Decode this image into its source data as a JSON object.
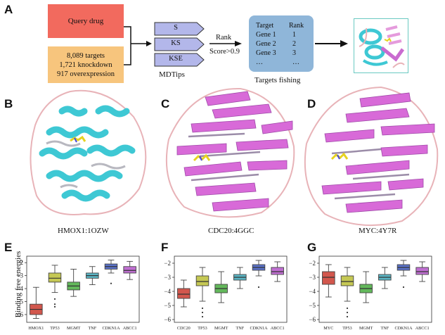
{
  "panels": {
    "a": "A",
    "b": "B",
    "c": "C",
    "d": "D",
    "e": "E",
    "f": "F",
    "g": "G"
  },
  "flow": {
    "query_drug": "Query drug",
    "targets_lines": [
      "8,089 targets",
      "1,721 knockdown",
      "917 overexpression"
    ],
    "modes": [
      "S",
      "KS",
      "KSE"
    ],
    "mdtips": "MDTips",
    "rank": "Rank",
    "score": "Score>0.9",
    "table_headers": [
      "Target",
      "Rank"
    ],
    "table_rows": [
      [
        "Gene 1",
        "1"
      ],
      [
        "Gene 2",
        "2"
      ],
      [
        "Gene 3",
        "3"
      ],
      [
        "…",
        "…"
      ]
    ],
    "targets_fishing": "Targets fishing"
  },
  "structures": [
    {
      "name": "HMOX1:1OZW",
      "helix_color": "#3ec8d4",
      "loop_color": "#e8b3b8"
    },
    {
      "name": "CDC20:4GGC",
      "sheet_color": "#d86ad8",
      "loop_color": "#e8b3b8"
    },
    {
      "name": "MYC:4Y7R",
      "sheet_color": "#d86ad8",
      "loop_color": "#e8b3b8"
    }
  ],
  "chart_data": [
    {
      "type": "box",
      "ylabel": "Binding free energies",
      "ylim": [
        -6.6,
        -1.5
      ],
      "yticks": [
        -6,
        -5,
        -4,
        -3,
        -2
      ],
      "categories": [
        "HMOX1",
        "TP53",
        "MGMT",
        "TNF",
        "CDKN1A",
        "ABCC1"
      ],
      "colors": [
        "#d2574d",
        "#c5c854",
        "#63b85b",
        "#5ab5c4",
        "#5a72c9",
        "#c06fd2"
      ],
      "boxes": [
        {
          "min": -6.3,
          "q1": -6.0,
          "median": -5.6,
          "q3": -5.2,
          "max": -3.9,
          "outliers": []
        },
        {
          "min": -4.3,
          "q1": -3.5,
          "median": -3.2,
          "q3": -2.8,
          "max": -2.2,
          "outliers": [
            -4.8,
            -5.2,
            -5.4
          ]
        },
        {
          "min": -4.6,
          "q1": -4.1,
          "median": -3.8,
          "q3": -3.5,
          "max": -2.5,
          "outliers": []
        },
        {
          "min": -3.7,
          "q1": -3.2,
          "median": -3.0,
          "q3": -2.8,
          "max": -2.3,
          "outliers": []
        },
        {
          "min": -2.8,
          "q1": -2.5,
          "median": -2.3,
          "q3": -2.1,
          "max": -1.8,
          "outliers": [
            -3.6
          ]
        },
        {
          "min": -3.3,
          "q1": -2.8,
          "median": -2.6,
          "q3": -2.3,
          "max": -1.9,
          "outliers": []
        }
      ]
    },
    {
      "type": "box",
      "ylabel": "",
      "ylim": [
        -6.2,
        -1.5
      ],
      "yticks": [
        -6,
        -5,
        -4,
        -3,
        -2
      ],
      "categories": [
        "CDC20",
        "TP53",
        "MGMT",
        "TNF",
        "CDKN1A",
        "ABCC1"
      ],
      "colors": [
        "#d2574d",
        "#c5c854",
        "#63b85b",
        "#5ab5c4",
        "#5a72c9",
        "#c06fd2"
      ],
      "boxes": [
        {
          "min": -5.1,
          "q1": -4.5,
          "median": -4.2,
          "q3": -3.8,
          "max": -3.2,
          "outliers": []
        },
        {
          "min": -4.7,
          "q1": -3.6,
          "median": -3.3,
          "q3": -2.9,
          "max": -2.3,
          "outliers": [
            -5.2,
            -5.5,
            -5.8
          ]
        },
        {
          "min": -4.8,
          "q1": -4.1,
          "median": -3.8,
          "q3": -3.5,
          "max": -2.6,
          "outliers": []
        },
        {
          "min": -3.8,
          "q1": -3.2,
          "median": -3.0,
          "q3": -2.8,
          "max": -2.3,
          "outliers": []
        },
        {
          "min": -2.9,
          "q1": -2.5,
          "median": -2.3,
          "q3": -2.1,
          "max": -1.8,
          "outliers": [
            -3.7
          ]
        },
        {
          "min": -3.3,
          "q1": -2.8,
          "median": -2.6,
          "q3": -2.3,
          "max": -1.9,
          "outliers": []
        }
      ]
    },
    {
      "type": "box",
      "ylabel": "",
      "ylim": [
        -6.2,
        -1.5
      ],
      "yticks": [
        -6,
        -5,
        -4,
        -3,
        -2
      ],
      "categories": [
        "MYC",
        "TP53",
        "MGMT",
        "TNF",
        "CDKN1A",
        "ABCC1"
      ],
      "colors": [
        "#d2574d",
        "#c5c854",
        "#63b85b",
        "#5ab5c4",
        "#5a72c9",
        "#c06fd2"
      ],
      "boxes": [
        {
          "min": -4.4,
          "q1": -3.5,
          "median": -3.0,
          "q3": -2.6,
          "max": -2.1,
          "outliers": []
        },
        {
          "min": -4.7,
          "q1": -3.6,
          "median": -3.3,
          "q3": -2.9,
          "max": -2.3,
          "outliers": [
            -5.2,
            -5.5,
            -5.8
          ]
        },
        {
          "min": -4.8,
          "q1": -4.1,
          "median": -3.8,
          "q3": -3.5,
          "max": -2.6,
          "outliers": []
        },
        {
          "min": -3.8,
          "q1": -3.2,
          "median": -3.0,
          "q3": -2.8,
          "max": -2.3,
          "outliers": []
        },
        {
          "min": -2.9,
          "q1": -2.5,
          "median": -2.3,
          "q3": -2.1,
          "max": -1.8,
          "outliers": [
            -3.7
          ]
        },
        {
          "min": -3.3,
          "q1": -2.8,
          "median": -2.6,
          "q3": -2.3,
          "max": -1.9,
          "outliers": []
        }
      ]
    }
  ]
}
